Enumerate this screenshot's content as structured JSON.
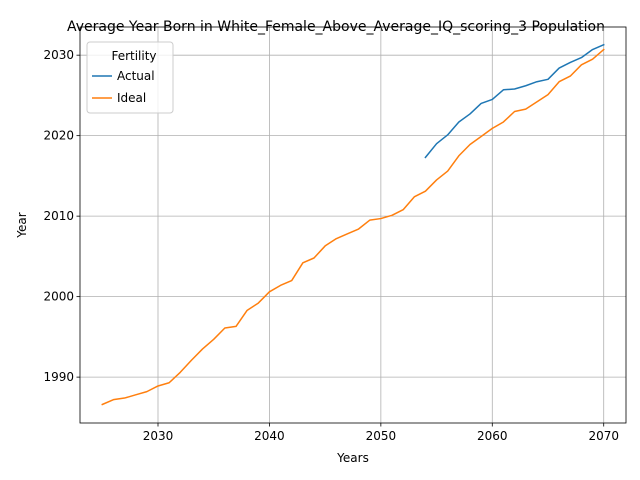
{
  "chart_data": {
    "type": "line",
    "title": "Average Year Born in White_Female_Above_Average_IQ_scoring_3 Population",
    "xlabel": "Years",
    "ylabel": "Year",
    "xlim": [
      2023,
      2072
    ],
    "ylim": [
      1984.3,
      2033.5
    ],
    "xticks": [
      2030,
      2040,
      2050,
      2060,
      2070
    ],
    "yticks": [
      1990,
      2000,
      2010,
      2020,
      2030
    ],
    "grid": true,
    "legend": {
      "title": "Fertility",
      "placement": "top-left"
    },
    "series": [
      {
        "name": "Actual",
        "color": "#1f77b4",
        "x": [
          2054,
          2055,
          2056,
          2057,
          2058,
          2059,
          2060,
          2061,
          2062,
          2063,
          2064,
          2065,
          2066,
          2067,
          2068,
          2069,
          2070
        ],
        "values": [
          2017.3,
          2019.0,
          2020.1,
          2021.7,
          2022.7,
          2024.0,
          2024.5,
          2025.7,
          2025.8,
          2026.2,
          2026.7,
          2027.0,
          2028.4,
          2029.1,
          2029.7,
          2030.7,
          2031.3
        ]
      },
      {
        "name": "Ideal",
        "color": "#ff7f0e",
        "x": [
          2025,
          2026,
          2027,
          2028,
          2029,
          2030,
          2031,
          2032,
          2033,
          2034,
          2035,
          2036,
          2037,
          2038,
          2039,
          2040,
          2041,
          2042,
          2043,
          2044,
          2045,
          2046,
          2047,
          2048,
          2049,
          2050,
          2051,
          2052,
          2053,
          2054,
          2055,
          2056,
          2057,
          2058,
          2059,
          2060,
          2061,
          2062,
          2063,
          2064,
          2065,
          2066,
          2067,
          2068,
          2069,
          2070
        ],
        "values": [
          1986.6,
          1987.2,
          1987.4,
          1987.8,
          1988.2,
          1988.9,
          1989.3,
          1990.6,
          1992.1,
          1993.5,
          1994.7,
          1996.1,
          1996.3,
          1998.3,
          1999.2,
          2000.6,
          2001.4,
          2002.0,
          2004.2,
          2004.8,
          2006.3,
          2007.2,
          2007.8,
          2008.4,
          2009.5,
          2009.7,
          2010.1,
          2010.8,
          2012.4,
          2013.1,
          2014.5,
          2015.6,
          2017.5,
          2018.9,
          2019.9,
          2020.9,
          2021.7,
          2023.0,
          2023.3,
          2024.2,
          2025.1,
          2026.7,
          2027.4,
          2028.8,
          2029.5,
          2030.7
        ]
      }
    ]
  }
}
